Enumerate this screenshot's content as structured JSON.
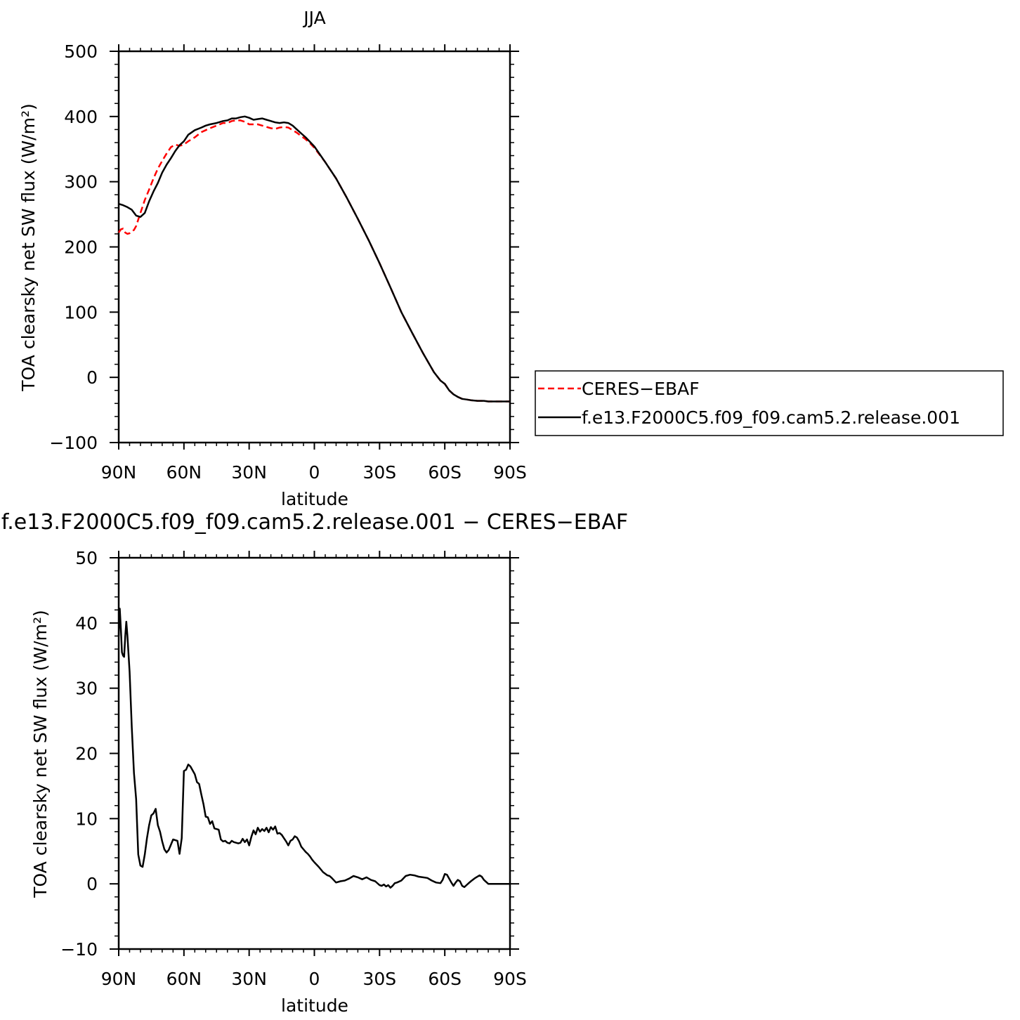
{
  "chart_data": [
    {
      "type": "line",
      "title": "JJA",
      "xlabel": "latitude",
      "ylabel": "TOA clearsky net SW flux (W/m²)",
      "xlim": [
        90,
        -90
      ],
      "ylim": [
        -100,
        500
      ],
      "x_ticks": [
        {
          "value": 90,
          "label": "90N"
        },
        {
          "value": 60,
          "label": "60N"
        },
        {
          "value": 30,
          "label": "30N"
        },
        {
          "value": 0,
          "label": "0"
        },
        {
          "value": -30,
          "label": "30S"
        },
        {
          "value": -60,
          "label": "60S"
        },
        {
          "value": -90,
          "label": "90S"
        }
      ],
      "y_ticks": [
        {
          "value": 500,
          "label": "500"
        },
        {
          "value": 400,
          "label": "400"
        },
        {
          "value": 300,
          "label": "300"
        },
        {
          "value": 200,
          "label": "200"
        },
        {
          "value": 100,
          "label": "100"
        },
        {
          "value": 0,
          "label": "0"
        },
        {
          "value": -100,
          "label": "−100"
        }
      ],
      "legend": {
        "placement": "right"
      },
      "series": [
        {
          "name": "CERES−EBAF",
          "color": "#ff0000",
          "dash": "dashed",
          "x": [
            90,
            89,
            88,
            87,
            86,
            85,
            84,
            83,
            82,
            80,
            78,
            76,
            74,
            72,
            70,
            68,
            66,
            64,
            62,
            60,
            58,
            55,
            52,
            50,
            48,
            45,
            42,
            40,
            38,
            36,
            34,
            32,
            30,
            28,
            26,
            24,
            22,
            20,
            18,
            16,
            14,
            12,
            10,
            8,
            6,
            4,
            2,
            0,
            -5,
            -10,
            -15,
            -20,
            -25,
            -30,
            -35,
            -40,
            -45,
            -50,
            -55,
            -58,
            -60,
            -62,
            -64,
            -66,
            -68,
            -70,
            -72,
            -75,
            -78,
            -80,
            -85,
            -90
          ],
          "y": [
            222,
            227,
            228,
            222,
            220,
            221,
            224,
            226,
            232,
            252,
            272,
            288,
            305,
            320,
            332,
            343,
            353,
            357,
            355,
            357,
            362,
            368,
            376,
            379,
            382,
            386,
            390,
            390,
            393,
            394,
            394,
            392,
            388,
            388,
            388,
            386,
            384,
            382,
            381,
            383,
            384,
            383,
            379,
            375,
            370,
            365,
            359,
            352,
            330,
            305,
            275,
            243,
            210,
            175,
            138,
            100,
            68,
            37,
            8,
            -5,
            -10,
            -20,
            -26,
            -30,
            -33,
            -34,
            -35,
            -36,
            -36,
            -37,
            -37,
            -37
          ]
        },
        {
          "name": "f.e13.F2000C5.f09_f09.cam5.2.release.001",
          "color": "#000000",
          "dash": "solid",
          "x": [
            90,
            88,
            86,
            84,
            82,
            80,
            78,
            76,
            74,
            72,
            70,
            68,
            66,
            64,
            62,
            60,
            58,
            55,
            52,
            50,
            48,
            45,
            42,
            40,
            38,
            36,
            34,
            32,
            30,
            28,
            26,
            24,
            22,
            20,
            18,
            16,
            14,
            12,
            10,
            8,
            6,
            4,
            2,
            0,
            -5,
            -10,
            -15,
            -20,
            -25,
            -30,
            -35,
            -40,
            -45,
            -50,
            -55,
            -58,
            -60,
            -62,
            -64,
            -66,
            -68,
            -70,
            -72,
            -75,
            -78,
            -80,
            -85,
            -90
          ],
          "y": [
            266,
            264,
            261,
            257,
            248,
            246,
            252,
            270,
            285,
            298,
            314,
            326,
            336,
            347,
            356,
            362,
            372,
            379,
            383,
            386,
            388,
            390,
            393,
            394,
            397,
            397,
            399,
            400,
            398,
            395,
            396,
            397,
            395,
            393,
            391,
            390,
            391,
            390,
            386,
            380,
            374,
            368,
            361,
            354,
            330,
            305,
            275,
            243,
            210,
            175,
            138,
            100,
            68,
            37,
            8,
            -5,
            -10,
            -20,
            -26,
            -30,
            -33,
            -34,
            -35,
            -36,
            -36,
            -37,
            -37,
            -37
          ]
        }
      ]
    },
    {
      "type": "line",
      "title": "f.e13.F2000C5.f09_f09.cam5.2.release.001 − CERES−EBAF",
      "xlabel": "latitude",
      "ylabel": "TOA clearsky net SW flux (W/m²)",
      "xlim": [
        90,
        -90
      ],
      "ylim": [
        -10,
        50
      ],
      "x_ticks": [
        {
          "value": 90,
          "label": "90N"
        },
        {
          "value": 60,
          "label": "60N"
        },
        {
          "value": 30,
          "label": "30N"
        },
        {
          "value": 0,
          "label": "0"
        },
        {
          "value": -30,
          "label": "30S"
        },
        {
          "value": -60,
          "label": "60S"
        },
        {
          "value": -90,
          "label": "90S"
        }
      ],
      "y_ticks": [
        {
          "value": 50,
          "label": "50"
        },
        {
          "value": 40,
          "label": "40"
        },
        {
          "value": 30,
          "label": "30"
        },
        {
          "value": 20,
          "label": "20"
        },
        {
          "value": 10,
          "label": "10"
        },
        {
          "value": 0,
          "label": "0"
        },
        {
          "value": -10,
          "label": "−10"
        }
      ],
      "series": [
        {
          "color": "#000000",
          "dash": "solid",
          "x": [
            90,
            89.5,
            89,
            88.5,
            88,
            87.5,
            87,
            86.5,
            86,
            85,
            84,
            83,
            82,
            81,
            80,
            79,
            78,
            77,
            76,
            75,
            74,
            73,
            72,
            71,
            70,
            69,
            68,
            67,
            66,
            65,
            64,
            63,
            62,
            61,
            60,
            59,
            58,
            57,
            56,
            55,
            54,
            53,
            52,
            51,
            50,
            49,
            48,
            47,
            46,
            45,
            44,
            43,
            42,
            41,
            40,
            39,
            38,
            37,
            36,
            35,
            34,
            33,
            32,
            31,
            30,
            29,
            28,
            27,
            26,
            25,
            24,
            23,
            22,
            21,
            20,
            19,
            18,
            17,
            16,
            15,
            14,
            13,
            12,
            11,
            10,
            9,
            8,
            7,
            6,
            5,
            4,
            3,
            2,
            1,
            0,
            -2,
            -4,
            -6,
            -7,
            -8,
            -10,
            -12,
            -14,
            -16,
            -18,
            -20,
            -22,
            -24,
            -26,
            -28,
            -30,
            -31,
            -32,
            -33,
            -34,
            -35,
            -36,
            -37,
            -38,
            -40,
            -42,
            -44,
            -46,
            -48,
            -50,
            -52,
            -54,
            -56,
            -58,
            -59,
            -60,
            -61,
            -62,
            -63,
            -64,
            -65,
            -66,
            -67,
            -68,
            -69,
            -70,
            -71,
            -72,
            -74,
            -76,
            -77,
            -78,
            -80,
            -82,
            -84,
            -86,
            -88,
            -90
          ],
          "y": [
            38,
            42.2,
            39,
            35.5,
            35,
            34.8,
            38,
            40.2,
            38,
            32.5,
            24,
            17,
            13,
            4.5,
            2.8,
            2.6,
            4.5,
            7,
            9,
            10.5,
            10.8,
            11.5,
            9,
            8,
            6.5,
            5.3,
            4.8,
            5.2,
            6,
            6.8,
            6.7,
            6.6,
            4.6,
            7,
            17.3,
            17.5,
            18.3,
            18,
            17.4,
            16.8,
            15.6,
            15.3,
            13.7,
            12.2,
            10.3,
            10.2,
            9.2,
            9.6,
            8.5,
            8.4,
            8.3,
            6.8,
            6.5,
            6.6,
            6.3,
            6.2,
            6.6,
            6.4,
            6.3,
            6.2,
            6.3,
            6.9,
            6.4,
            6.8,
            5.9,
            7.2,
            8.2,
            7.6,
            8.6,
            8.0,
            8.4,
            8.1,
            8.6,
            7.9,
            8.7,
            8.3,
            8.8,
            7.7,
            7.8,
            7.5,
            7.0,
            6.5,
            5.9,
            6.6,
            6.8,
            7.3,
            7.1,
            6.5,
            5.7,
            5.3,
            4.9,
            4.6,
            4.2,
            3.7,
            3.3,
            2.6,
            1.8,
            1.3,
            1.2,
            0.9,
            0.2,
            0.4,
            0.5,
            0.8,
            1.2,
            1.0,
            0.7,
            1.0,
            0.6,
            0.4,
            -0.2,
            -0.3,
            -0.1,
            -0.4,
            -0.2,
            -0.6,
            -0.3,
            0.1,
            0.2,
            0.5,
            1.2,
            1.4,
            1.3,
            1.1,
            1.0,
            0.9,
            0.5,
            0.2,
            0.1,
            0.6,
            1.5,
            1.4,
            0.8,
            0.2,
            -0.3,
            0.2,
            0.6,
            0.4,
            -0.3,
            -0.5,
            -0.2,
            0.1,
            0.4,
            0.9,
            1.3,
            1.1,
            0.6,
            0.0,
            0.0,
            0.0,
            0.0,
            0.0,
            0.0
          ]
        }
      ]
    }
  ]
}
